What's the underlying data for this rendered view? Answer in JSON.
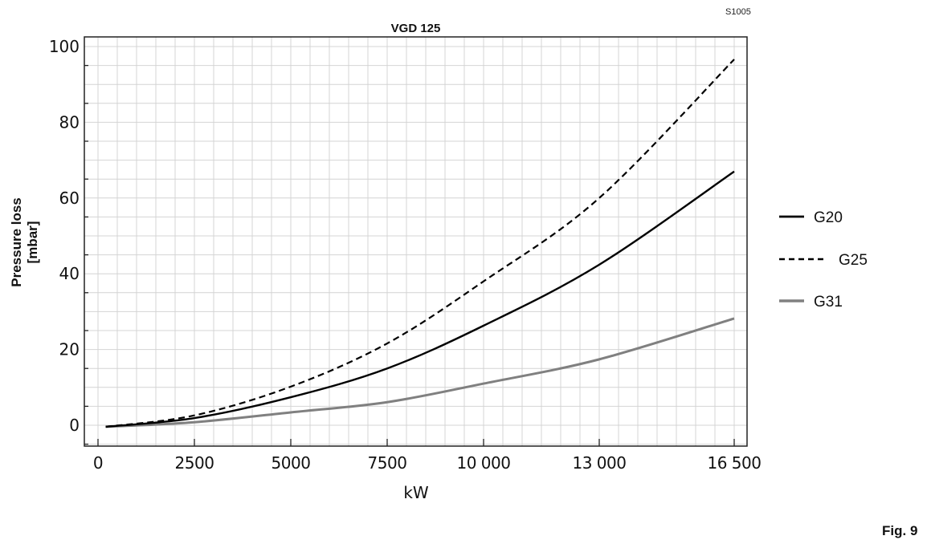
{
  "figure": {
    "code": "S1005",
    "label": "Fig. 9"
  },
  "chart_data": {
    "type": "line",
    "title": "VGD 125",
    "xlabel": "kW",
    "ylabel": "Pressure loss [mbar]",
    "ylabel_lines": [
      "Pressure loss",
      "[mbar]"
    ],
    "xlim": [
      -350,
      16850
    ],
    "ylim": [
      -5.5,
      102.5
    ],
    "xticks": [
      0,
      2500,
      5000,
      7500,
      10000,
      13000,
      16500
    ],
    "xtick_labels": [
      "0",
      "2500",
      "5000",
      "7500",
      "10 000",
      "13 000",
      "16 500"
    ],
    "yticks": [
      0,
      20,
      40,
      60,
      80,
      100
    ],
    "ytick_labels": [
      "0",
      "20",
      "40",
      "60",
      "80",
      "100"
    ],
    "minor_grid": {
      "x_step": 500,
      "y_step": 5
    },
    "grid": true,
    "legend_position": "right",
    "x": [
      200,
      2500,
      5000,
      7500,
      10000,
      13000,
      16500
    ],
    "series": [
      {
        "name": "G20",
        "style": "solid",
        "color": "#000000",
        "width": 2.4,
        "values": [
          -0.4,
          1.9,
          7.4,
          15.0,
          26.3,
          42.4,
          67.0
        ]
      },
      {
        "name": "G25",
        "style": "dashed",
        "color": "#000000",
        "width": 2.2,
        "values": [
          -0.4,
          2.6,
          10.2,
          21.6,
          38.0,
          60.0,
          96.6
        ]
      },
      {
        "name": "G31",
        "style": "solid",
        "color": "#808080",
        "width": 3.0,
        "values": [
          -0.4,
          0.8,
          3.4,
          6.1,
          11.0,
          17.4,
          28.2
        ]
      }
    ]
  }
}
